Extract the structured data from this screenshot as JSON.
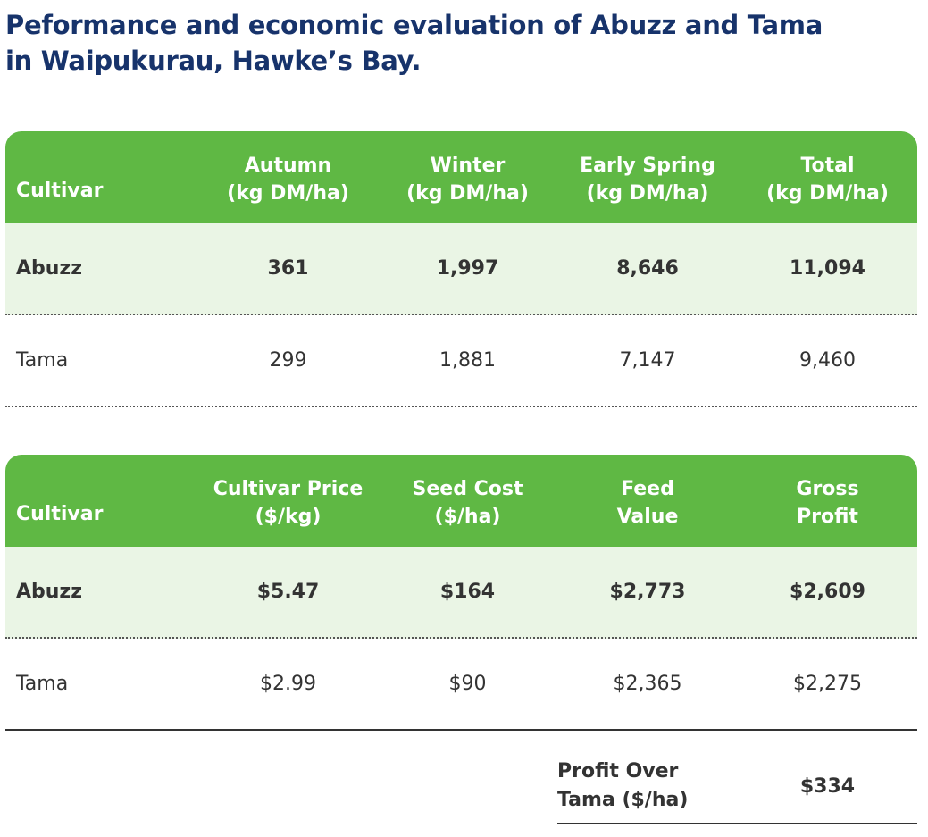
{
  "title": {
    "line1": "Peformance and economic evaluation of Abuzz and Tama",
    "line2": "in Waipukurau, Hawke’s Bay."
  },
  "table1": {
    "headers": [
      {
        "line1": "Cultivar",
        "line2": ""
      },
      {
        "line1": "Autumn",
        "line2": "(kg DM/ha)"
      },
      {
        "line1": "Winter",
        "line2": "(kg DM/ha)"
      },
      {
        "line1": "Early Spring",
        "line2": "(kg DM/ha)"
      },
      {
        "line1": "Total",
        "line2": "(kg DM/ha)"
      }
    ],
    "rows": [
      [
        "Abuzz",
        "361",
        "1,997",
        "8,646",
        "11,094"
      ],
      [
        "Tama",
        "299",
        "1,881",
        "7,147",
        "9,460"
      ]
    ]
  },
  "table2": {
    "headers": [
      {
        "line1": "Cultivar",
        "line2": ""
      },
      {
        "line1": "Cultivar Price",
        "line2": "($/kg)"
      },
      {
        "line1": "Seed Cost",
        "line2": "($/ha)"
      },
      {
        "line1": "Feed",
        "line2": "Value"
      },
      {
        "line1": "Gross",
        "line2": "Profit"
      }
    ],
    "rows": [
      [
        "Abuzz",
        "$5.47",
        "$164",
        "$2,773",
        "$2,609"
      ],
      [
        "Tama",
        "$2.99",
        "$90",
        "$2,365",
        "$2,275"
      ]
    ]
  },
  "profit": {
    "label_line1": "Profit Over",
    "label_line2": "Tama ($/ha)",
    "value": "$334"
  },
  "colors": {
    "header_green": "#5fb844",
    "highlight_row": "#eaf5e5",
    "title_navy": "#17336b"
  }
}
